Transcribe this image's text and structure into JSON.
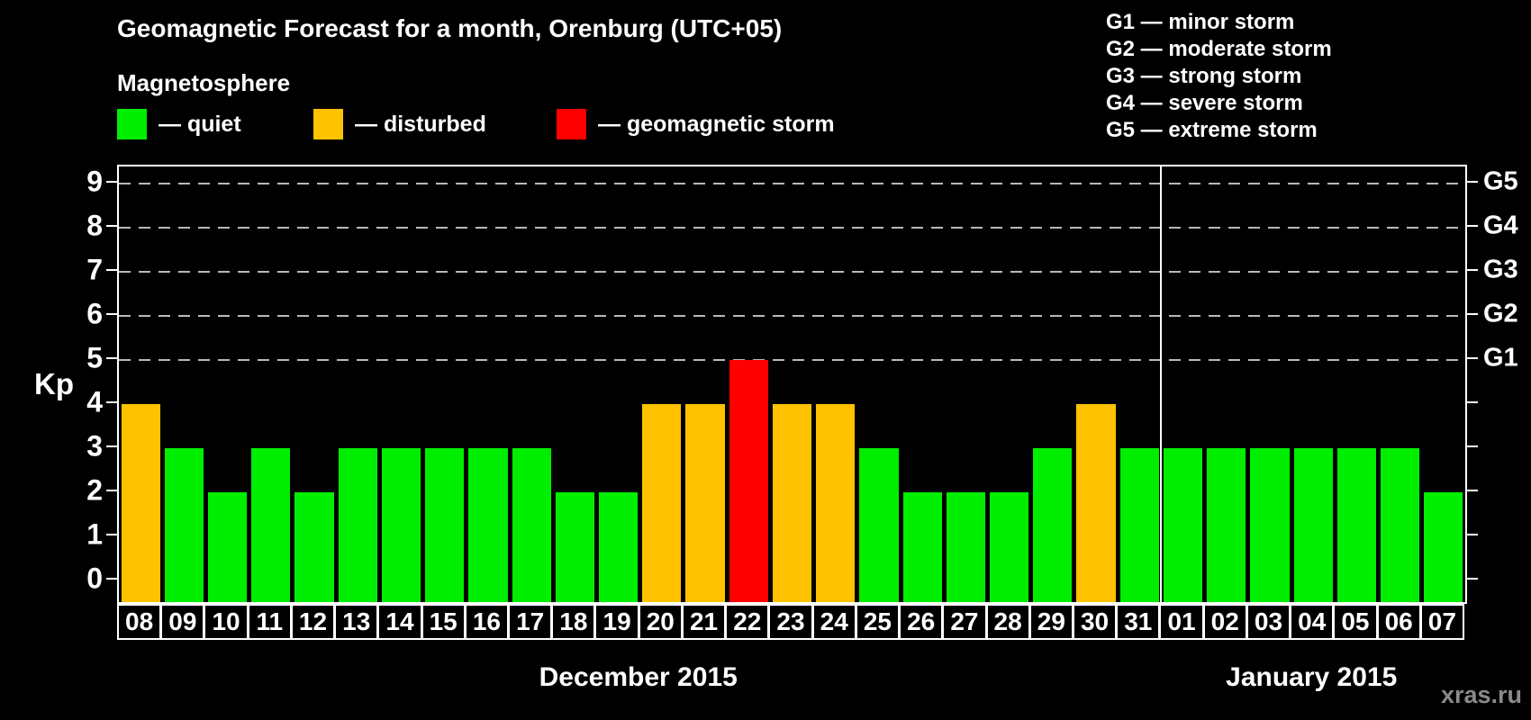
{
  "title": "Geomagnetic Forecast for a month, Orenburg (UTC+05)",
  "subtitle": "Magnetosphere",
  "legend": {
    "items": [
      {
        "status": "quiet",
        "label": "— quiet",
        "color": "#00ee00"
      },
      {
        "status": "disturbed",
        "label": "— disturbed",
        "color": "#ffc200"
      },
      {
        "status": "storm",
        "label": "— geomagnetic storm",
        "color": "#ff0000"
      }
    ]
  },
  "storm_scale_legend": [
    "G1 — minor storm",
    "G2 — moderate storm",
    "G3 — strong storm",
    "G4 — severe storm",
    "G5 — extreme storm"
  ],
  "chart_data": {
    "type": "bar",
    "ylabel": "Kp",
    "ylim": [
      0,
      9
    ],
    "yticks": [
      "0",
      "1",
      "2",
      "3",
      "4",
      "5",
      "6",
      "7",
      "8",
      "9"
    ],
    "grid_kp": [
      5,
      6,
      7,
      8,
      9
    ],
    "grid_style": "dashed horizontal gray lines at G-storm levels",
    "right_axis_labels": [
      {
        "label": "G1",
        "kp": 5
      },
      {
        "label": "G2",
        "kp": 6
      },
      {
        "label": "G3",
        "kp": 7
      },
      {
        "label": "G4",
        "kp": 8
      },
      {
        "label": "G5",
        "kp": 9
      }
    ],
    "categories": [
      "08",
      "09",
      "10",
      "11",
      "12",
      "13",
      "14",
      "15",
      "16",
      "17",
      "18",
      "19",
      "20",
      "21",
      "22",
      "23",
      "24",
      "25",
      "26",
      "27",
      "28",
      "29",
      "30",
      "31",
      "01",
      "02",
      "03",
      "04",
      "05",
      "06",
      "07"
    ],
    "values": [
      4,
      3,
      2,
      3,
      2,
      3,
      3,
      3,
      3,
      3,
      2,
      2,
      4,
      4,
      5,
      4,
      4,
      3,
      2,
      2,
      2,
      3,
      4,
      3,
      3,
      3,
      3,
      3,
      3,
      3,
      2
    ],
    "statuses": [
      "disturbed",
      "quiet",
      "quiet",
      "quiet",
      "quiet",
      "quiet",
      "quiet",
      "quiet",
      "quiet",
      "quiet",
      "quiet",
      "quiet",
      "disturbed",
      "disturbed",
      "storm",
      "disturbed",
      "disturbed",
      "quiet",
      "quiet",
      "quiet",
      "quiet",
      "quiet",
      "disturbed",
      "quiet",
      "quiet",
      "quiet",
      "quiet",
      "quiet",
      "quiet",
      "quiet",
      "quiet"
    ],
    "status_colors": {
      "quiet": "#00ee00",
      "disturbed": "#ffc200",
      "storm": "#ff0000"
    },
    "months": [
      {
        "label": "December 2015",
        "start_index": 0,
        "end_index": 23
      },
      {
        "label": "January 2015",
        "start_index": 24,
        "end_index": 30
      }
    ],
    "month_divider_after_index": 23
  },
  "watermark": "xras.ru",
  "colors": {
    "background": "#000000",
    "text": "#ffffff",
    "frame": "#ffffff",
    "gridline": "#b9b9b9",
    "watermark": "#8a8a8a"
  }
}
